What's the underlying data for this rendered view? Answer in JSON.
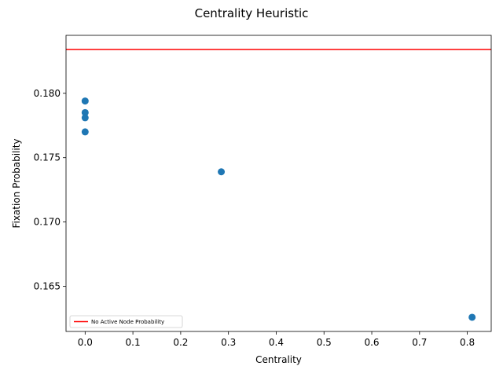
{
  "chart_data": {
    "type": "scatter",
    "title": "Centrality Heuristic",
    "xlabel": "Centrality",
    "ylabel": "Fixation Probability",
    "xlim": [
      -0.04,
      0.85
    ],
    "ylim": [
      0.1615,
      0.1845
    ],
    "xticks": [
      0.0,
      0.1,
      0.2,
      0.3,
      0.4,
      0.5,
      0.6,
      0.7,
      0.8
    ],
    "xtick_labels": [
      "0.0",
      "0.1",
      "0.2",
      "0.3",
      "0.4",
      "0.5",
      "0.6",
      "0.7",
      "0.8"
    ],
    "yticks": [
      0.165,
      0.17,
      0.175,
      0.18
    ],
    "ytick_labels": [
      "0.165",
      "0.170",
      "0.175",
      "0.180"
    ],
    "points": [
      {
        "x": 0.0,
        "y": 0.1794
      },
      {
        "x": 0.0,
        "y": 0.1785
      },
      {
        "x": 0.0,
        "y": 0.1781
      },
      {
        "x": 0.0,
        "y": 0.177
      },
      {
        "x": 0.285,
        "y": 0.1739
      },
      {
        "x": 0.81,
        "y": 0.1626
      }
    ],
    "reference_line": {
      "y": 0.1834,
      "label": "No Active Node Probability",
      "color": "#ff0000"
    },
    "point_color": "#1f77b4",
    "grid": false,
    "legend_position": "lower-left"
  }
}
